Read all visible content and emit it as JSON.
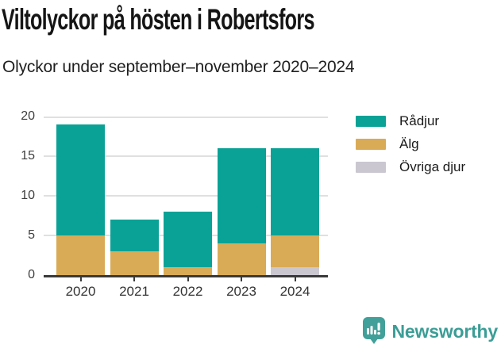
{
  "page": {
    "title": "Viltolyckor på hösten i Robertsfors",
    "subtitle": "Olyckor under september–november 2020–2024"
  },
  "chart_data": {
    "type": "bar",
    "stacked": true,
    "title": "Viltolyckor på hösten i Robertsfors",
    "subtitle": "Olyckor under september–november 2020–2024",
    "categories": [
      "2020",
      "2021",
      "2022",
      "2023",
      "2024"
    ],
    "series": [
      {
        "name": "Rådjur",
        "color": "#0aa296",
        "values": [
          14,
          4,
          7,
          12,
          11
        ]
      },
      {
        "name": "Älg",
        "color": "#d9ab57",
        "values": [
          5,
          3,
          1,
          4,
          4
        ]
      },
      {
        "name": "Övriga djur",
        "color": "#cac7d1",
        "values": [
          0,
          0,
          0,
          0,
          1
        ]
      }
    ],
    "stack_bottom_to_top": [
      "Övriga djur",
      "Älg",
      "Rådjur"
    ],
    "totals": [
      19,
      7,
      8,
      16,
      16
    ],
    "xlabel": "",
    "ylabel": "",
    "ylim": [
      0,
      20
    ],
    "yticks": [
      0,
      5,
      10,
      15,
      20
    ],
    "grid": "horizontal",
    "legend_position": "right"
  },
  "footer": {
    "brand": "Newsworthy",
    "brand_color": "#3b9d96",
    "logo_icon": "newsworthy-bar-chart-bubble-icon"
  },
  "style": {
    "axis_color": "#3a3a3a",
    "gridline_color": "#e0e0e0",
    "text_color": "#151515"
  }
}
